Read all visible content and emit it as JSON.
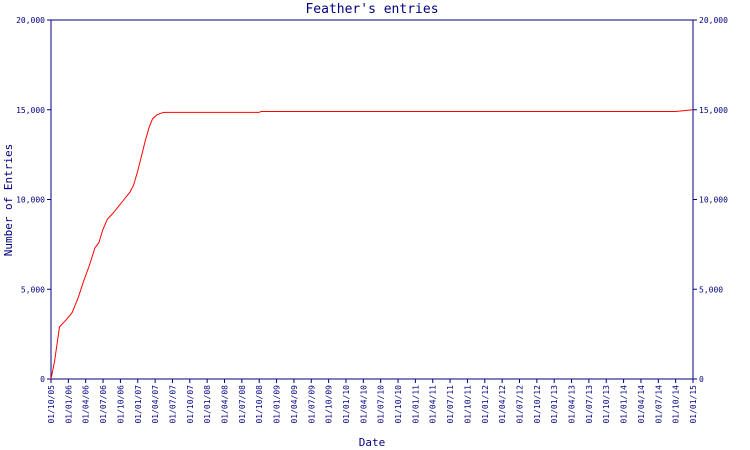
{
  "chart_data": {
    "type": "line",
    "title": "Feather's entries",
    "xlabel": "Date",
    "ylabel": "Number of Entries",
    "ylim": [
      0,
      20000
    ],
    "yticks": [
      0,
      5000,
      10000,
      15000,
      20000
    ],
    "ytick_labels": [
      "0",
      "5,000",
      "10,000",
      "15,000",
      "20,000"
    ],
    "xlim": [
      "2005-10-01",
      "2015-01-01"
    ],
    "xtick_labels": [
      "01/10/05",
      "01/01/06",
      "01/04/06",
      "01/07/06",
      "01/10/06",
      "01/01/07",
      "01/04/07",
      "01/07/07",
      "01/10/07",
      "01/01/08",
      "01/04/08",
      "01/07/08",
      "01/10/08",
      "01/01/09",
      "01/04/09",
      "01/07/09",
      "01/10/09",
      "01/01/10",
      "01/04/10",
      "01/07/10",
      "01/10/10",
      "01/01/11",
      "01/04/11",
      "01/07/11",
      "01/10/11",
      "01/01/12",
      "01/04/12",
      "01/07/12",
      "01/10/12",
      "01/01/13",
      "01/04/13",
      "01/07/13",
      "01/10/13",
      "01/01/14",
      "01/04/14",
      "01/07/14",
      "01/10/14",
      "01/01/15"
    ],
    "grid": false,
    "colors": {
      "line": "#ff0000",
      "axis": "#000080",
      "text": "#000080"
    },
    "series": [
      {
        "x": [
          "2005-10-01",
          "2005-10-20",
          "2005-11-15",
          "2005-12-20",
          "2006-01-20",
          "2006-02-20",
          "2006-03-20",
          "2006-04-20",
          "2006-05-20",
          "2006-06-10",
          "2006-06-30",
          "2006-07-25",
          "2006-08-20",
          "2006-09-20",
          "2006-10-20",
          "2006-11-20",
          "2006-12-10",
          "2007-01-01",
          "2007-01-20",
          "2007-02-10",
          "2007-03-01",
          "2007-03-20",
          "2007-04-10",
          "2007-05-01",
          "2007-05-20",
          "2007-06-20",
          "2007-07-20",
          "2007-10-01",
          "2008-01-01",
          "2008-04-01",
          "2008-07-01",
          "2008-10-01",
          "2008-10-10",
          "2009-01-01",
          "2010-01-01",
          "2011-01-01",
          "2012-01-01",
          "2013-01-01",
          "2014-01-01",
          "2014-07-01",
          "2014-10-01",
          "2015-01-01"
        ],
        "y": [
          0,
          1000,
          2900,
          3300,
          3700,
          4500,
          5400,
          6300,
          7300,
          7600,
          8300,
          8900,
          9200,
          9600,
          10000,
          10400,
          10800,
          11600,
          12400,
          13300,
          14000,
          14500,
          14700,
          14800,
          14850,
          14850,
          14850,
          14850,
          14850,
          14850,
          14850,
          14850,
          14900,
          14900,
          14900,
          14900,
          14900,
          14900,
          14900,
          14900,
          14900,
          15000
        ]
      }
    ]
  }
}
